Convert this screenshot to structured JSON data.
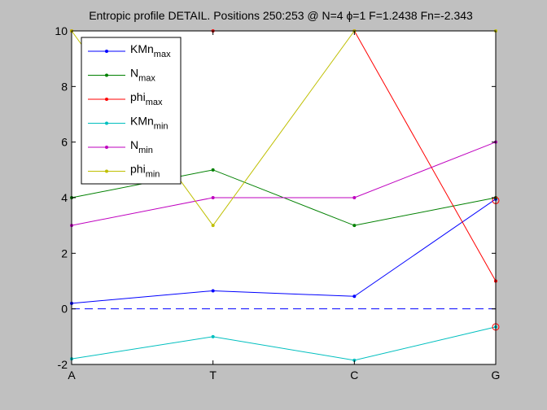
{
  "chart_data": {
    "type": "line",
    "title": "Entropic profile DETAIL. Positions 250:253 @ N=4 ϕ=1 F=1.2438 Fn=-2.343",
    "categories": [
      "A",
      "T",
      "C",
      "G"
    ],
    "ylim": [
      -2,
      10
    ],
    "yticks": [
      "-2",
      "0",
      "2",
      "4",
      "6",
      "8",
      "10"
    ],
    "xlabel": "",
    "ylabel": "",
    "grid": false,
    "legend_position": "top-left",
    "series": [
      {
        "name": "KMn",
        "subscript": "max",
        "color": "#0000ff",
        "values": [
          0.2,
          0.65,
          0.45,
          3.95
        ]
      },
      {
        "name": "N",
        "subscript": "max",
        "color": "#008000",
        "values": [
          4,
          5,
          3,
          4
        ]
      },
      {
        "name": "phi",
        "subscript": "max",
        "color": "#ff0000",
        "values": [
          10,
          10,
          10,
          1
        ]
      },
      {
        "name": "KMn",
        "subscript": "min",
        "color": "#00bfbf",
        "values": [
          -1.8,
          -1,
          -1.85,
          -0.65
        ]
      },
      {
        "name": "N",
        "subscript": "min",
        "color": "#bf00bf",
        "values": [
          3,
          4,
          4,
          6
        ]
      },
      {
        "name": "phi",
        "subscript": "min",
        "color": "#bfbf00",
        "values": [
          10,
          3,
          10,
          10
        ]
      }
    ],
    "reference_line": {
      "y": 0,
      "color": "#0000ff",
      "style": "dashed"
    },
    "markers": [
      {
        "category": "G",
        "y": 3.9,
        "color": "#ff0000",
        "shape": "circle"
      },
      {
        "category": "G",
        "y": -0.65,
        "color": "#ff0000",
        "shape": "circle"
      }
    ]
  }
}
